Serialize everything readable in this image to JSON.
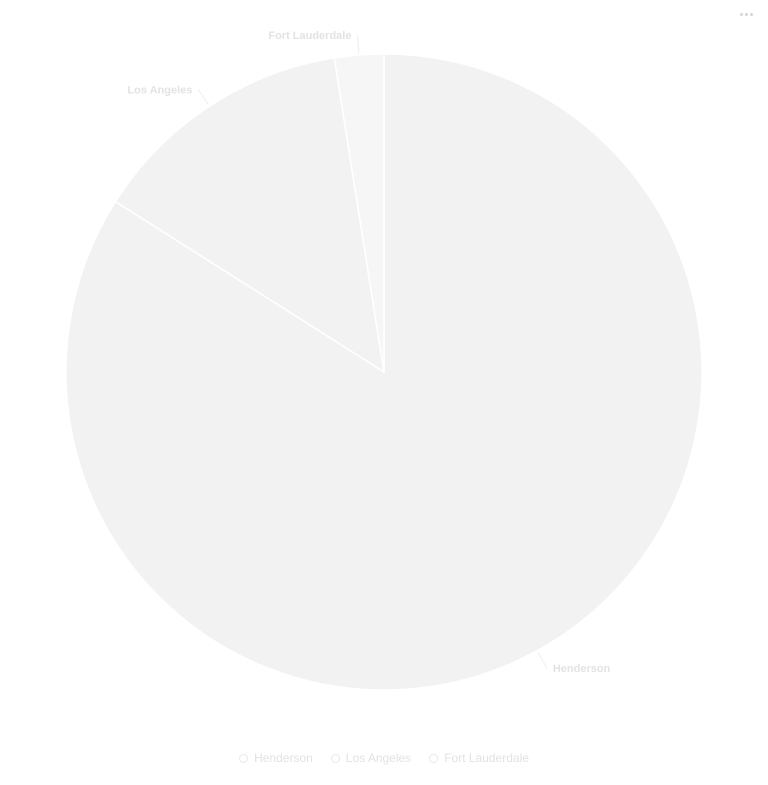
{
  "menu": {
    "icon": "more-horizontal-icon"
  },
  "colors": {
    "slice_fill": "#f2f2f2",
    "slice_fill_small": "#f6f6f6",
    "slice_stroke": "#ffffff",
    "label_text": "#e3e3e3",
    "leader_line": "#eeeeee",
    "legend_text": "#e2e2e2"
  },
  "chart_data": {
    "type": "pie",
    "title": "",
    "categories": [
      "Henderson",
      "Los Angeles",
      "Fort Lauderdale"
    ],
    "values": [
      84,
      13.5,
      2.5
    ],
    "legend": {
      "placement": "bottom",
      "entries": [
        "Henderson",
        "Los Angeles",
        "Fort Lauderdale"
      ]
    },
    "labels": [
      "Henderson",
      "Los Angeles",
      "Fort Lauderdale"
    ]
  }
}
